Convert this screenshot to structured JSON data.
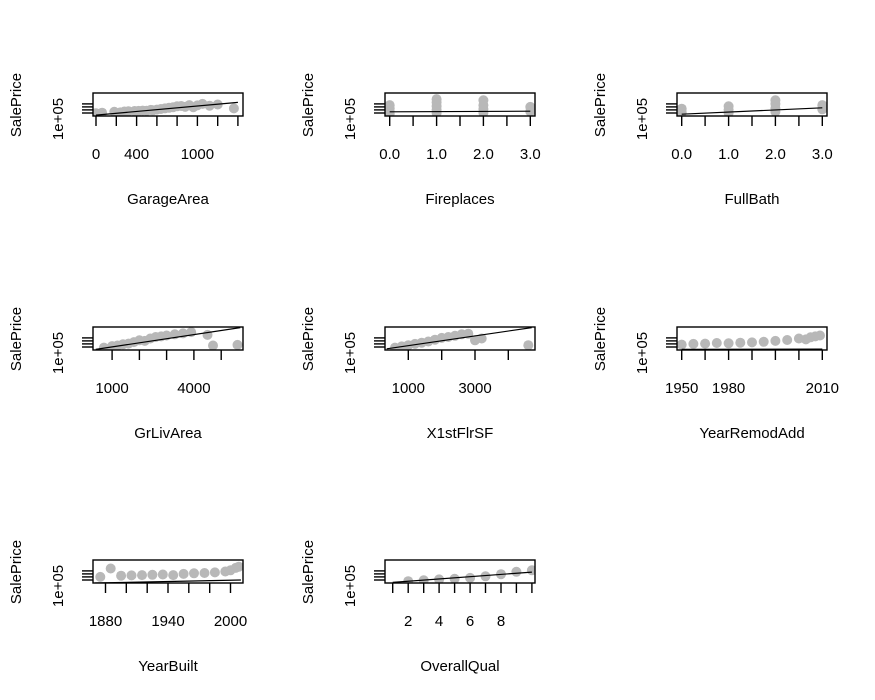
{
  "chart_data": [
    {
      "type": "scatter",
      "xlabel": "GarageArea",
      "ylabel": "SalePrice",
      "xlim": [
        -30,
        1450
      ],
      "ylim": [
        0,
        760000
      ],
      "xticks": [
        0,
        200,
        400,
        600,
        800,
        1000,
        1200,
        1400
      ],
      "xtick_labels": [
        "0",
        "",
        "400",
        "",
        "",
        "1000",
        "",
        ""
      ],
      "ytick_labels": [
        "1e+05"
      ],
      "points": [
        [
          0,
          90000
        ],
        [
          60,
          110000
        ],
        [
          180,
          140000
        ],
        [
          240,
          120000
        ],
        [
          280,
          150000
        ],
        [
          320,
          160000
        ],
        [
          380,
          165000
        ],
        [
          420,
          170000
        ],
        [
          460,
          180000
        ],
        [
          500,
          175000
        ],
        [
          540,
          200000
        ],
        [
          560,
          190000
        ],
        [
          600,
          210000
        ],
        [
          640,
          230000
        ],
        [
          680,
          250000
        ],
        [
          720,
          270000
        ],
        [
          760,
          290000
        ],
        [
          800,
          320000
        ],
        [
          840,
          330000
        ],
        [
          880,
          300000
        ],
        [
          920,
          360000
        ],
        [
          960,
          290000
        ],
        [
          1000,
          350000
        ],
        [
          1050,
          400000
        ],
        [
          1120,
          340000
        ],
        [
          1200,
          380000
        ],
        [
          1360,
          250000
        ]
      ],
      "trend": [
        [
          0,
          30000
        ],
        [
          1400,
          450000
        ]
      ]
    },
    {
      "type": "scatter",
      "xlabel": "Fireplaces",
      "ylabel": "SalePrice",
      "xlim": [
        -0.1,
        3.1
      ],
      "ylim": [
        0,
        760000
      ],
      "xticks": [
        0,
        0.5,
        1,
        1.5,
        2,
        2.5,
        3
      ],
      "xtick_labels": [
        "0.0",
        "",
        "1.0",
        "",
        "2.0",
        "",
        "3.0"
      ],
      "ytick_labels": [
        "1e+05"
      ],
      "points": [
        [
          0,
          80000
        ],
        [
          0,
          150000
        ],
        [
          0,
          250000
        ],
        [
          0,
          360000
        ],
        [
          1,
          100000
        ],
        [
          1,
          200000
        ],
        [
          1,
          320000
        ],
        [
          1,
          450000
        ],
        [
          1,
          560000
        ],
        [
          2,
          110000
        ],
        [
          2,
          230000
        ],
        [
          2,
          360000
        ],
        [
          2,
          520000
        ],
        [
          3,
          150000
        ],
        [
          3,
          300000
        ]
      ],
      "trend": [
        [
          0,
          140000
        ],
        [
          3,
          160000
        ]
      ]
    },
    {
      "type": "scatter",
      "xlabel": "FullBath",
      "ylabel": "SalePrice",
      "xlim": [
        -0.1,
        3.1
      ],
      "ylim": [
        0,
        760000
      ],
      "xticks": [
        0,
        0.5,
        1,
        1.5,
        2,
        2.5,
        3
      ],
      "xtick_labels": [
        "0.0",
        "",
        "1.0",
        "",
        "2.0",
        "",
        "3.0"
      ],
      "ytick_labels": [
        "1e+05"
      ],
      "points": [
        [
          0,
          120000
        ],
        [
          0,
          240000
        ],
        [
          1,
          100000
        ],
        [
          1,
          210000
        ],
        [
          1,
          320000
        ],
        [
          2,
          140000
        ],
        [
          2,
          260000
        ],
        [
          2,
          400000
        ],
        [
          2,
          520000
        ],
        [
          3,
          220000
        ],
        [
          3,
          360000
        ]
      ],
      "trend": [
        [
          0,
          60000
        ],
        [
          3,
          270000
        ]
      ]
    },
    {
      "type": "scatter",
      "xlabel": "GrLivArea",
      "ylabel": "SalePrice",
      "xlim": [
        300,
        5800
      ],
      "ylim": [
        0,
        760000
      ],
      "xticks": [
        1000,
        2000,
        3000,
        4000,
        5000
      ],
      "xtick_labels": [
        "1000",
        "",
        "",
        "4000",
        ""
      ],
      "ytick_labels": [
        "1e+05"
      ],
      "points": [
        [
          700,
          80000
        ],
        [
          1000,
          130000
        ],
        [
          1200,
          150000
        ],
        [
          1400,
          190000
        ],
        [
          1600,
          210000
        ],
        [
          1800,
          260000
        ],
        [
          2000,
          320000
        ],
        [
          2200,
          300000
        ],
        [
          2400,
          380000
        ],
        [
          2600,
          430000
        ],
        [
          2800,
          450000
        ],
        [
          3000,
          480000
        ],
        [
          3300,
          520000
        ],
        [
          3600,
          550000
        ],
        [
          3900,
          590000
        ],
        [
          4500,
          500000
        ],
        [
          4700,
          150000
        ],
        [
          5600,
          170000
        ]
      ],
      "trend": [
        [
          400,
          20000
        ],
        [
          5700,
          740000
        ]
      ]
    },
    {
      "type": "scatter",
      "xlabel": "X1stFlrSF",
      "ylabel": "SalePrice",
      "xlim": [
        300,
        4800
      ],
      "ylim": [
        0,
        760000
      ],
      "xticks": [
        1000,
        2000,
        3000,
        4000
      ],
      "xtick_labels": [
        "1000",
        "",
        "3000",
        ""
      ],
      "ytick_labels": [
        "1e+05"
      ],
      "points": [
        [
          600,
          80000
        ],
        [
          800,
          120000
        ],
        [
          1000,
          160000
        ],
        [
          1200,
          200000
        ],
        [
          1400,
          240000
        ],
        [
          1600,
          280000
        ],
        [
          1800,
          340000
        ],
        [
          2000,
          400000
        ],
        [
          2200,
          430000
        ],
        [
          2400,
          470000
        ],
        [
          2600,
          520000
        ],
        [
          2800,
          540000
        ],
        [
          3000,
          320000
        ],
        [
          3200,
          380000
        ],
        [
          4600,
          160000
        ]
      ],
      "trend": [
        [
          350,
          40000
        ],
        [
          4700,
          740000
        ]
      ]
    },
    {
      "type": "scatter",
      "xlabel": "YearRemodAdd",
      "ylabel": "SalePrice",
      "xlim": [
        1948,
        2012
      ],
      "ylim": [
        0,
        760000
      ],
      "xticks": [
        1950,
        1960,
        1970,
        1980,
        1990,
        2000,
        2010
      ],
      "xtick_labels": [
        "1950",
        "",
        "1980",
        "",
        "",
        "",
        "2010"
      ],
      "ytick_labels": [
        "1e+05"
      ],
      "points": [
        [
          1950,
          180000
        ],
        [
          1955,
          200000
        ],
        [
          1960,
          210000
        ],
        [
          1965,
          230000
        ],
        [
          1970,
          220000
        ],
        [
          1975,
          240000
        ],
        [
          1980,
          250000
        ],
        [
          1985,
          270000
        ],
        [
          1990,
          300000
        ],
        [
          1995,
          330000
        ],
        [
          2000,
          380000
        ],
        [
          2003,
          350000
        ],
        [
          2005,
          420000
        ],
        [
          2007,
          450000
        ],
        [
          2009,
          480000
        ]
      ],
      "trend": [
        [
          1950,
          20000
        ],
        [
          2010,
          30000
        ]
      ]
    },
    {
      "type": "scatter",
      "xlabel": "YearBuilt",
      "ylabel": "SalePrice",
      "xlim": [
        1868,
        2012
      ],
      "ylim": [
        0,
        760000
      ],
      "xticks": [
        1880,
        1900,
        1920,
        1940,
        1960,
        1980,
        2000
      ],
      "xtick_labels": [
        "1880",
        "",
        "",
        "1940",
        "",
        "",
        "2000"
      ],
      "ytick_labels": [
        "1e+05"
      ],
      "points": [
        [
          1875,
          200000
        ],
        [
          1885,
          480000
        ],
        [
          1895,
          240000
        ],
        [
          1905,
          250000
        ],
        [
          1915,
          260000
        ],
        [
          1925,
          270000
        ],
        [
          1935,
          280000
        ],
        [
          1945,
          260000
        ],
        [
          1955,
          300000
        ],
        [
          1965,
          320000
        ],
        [
          1975,
          330000
        ],
        [
          1985,
          350000
        ],
        [
          1995,
          380000
        ],
        [
          2000,
          420000
        ],
        [
          2005,
          500000
        ],
        [
          2008,
          540000
        ]
      ],
      "trend": [
        [
          1870,
          0
        ],
        [
          2010,
          100000
        ]
      ]
    },
    {
      "type": "scatter",
      "xlabel": "OverallQual",
      "ylabel": "SalePrice",
      "xlim": [
        0.5,
        10.2
      ],
      "ylim": [
        0,
        760000
      ],
      "xticks": [
        1,
        2,
        3,
        4,
        5,
        6,
        7,
        8,
        9,
        10
      ],
      "xtick_labels": [
        "",
        "2",
        "",
        "4",
        "",
        "6",
        "",
        "8",
        "",
        ""
      ],
      "ytick_labels": [
        "1e+05"
      ],
      "points": [
        [
          2,
          60000
        ],
        [
          3,
          90000
        ],
        [
          4,
          120000
        ],
        [
          5,
          140000
        ],
        [
          6,
          170000
        ],
        [
          7,
          220000
        ],
        [
          8,
          290000
        ],
        [
          9,
          370000
        ],
        [
          10,
          420000
        ]
      ],
      "trend": [
        [
          1,
          20000
        ],
        [
          10,
          360000
        ]
      ]
    }
  ]
}
